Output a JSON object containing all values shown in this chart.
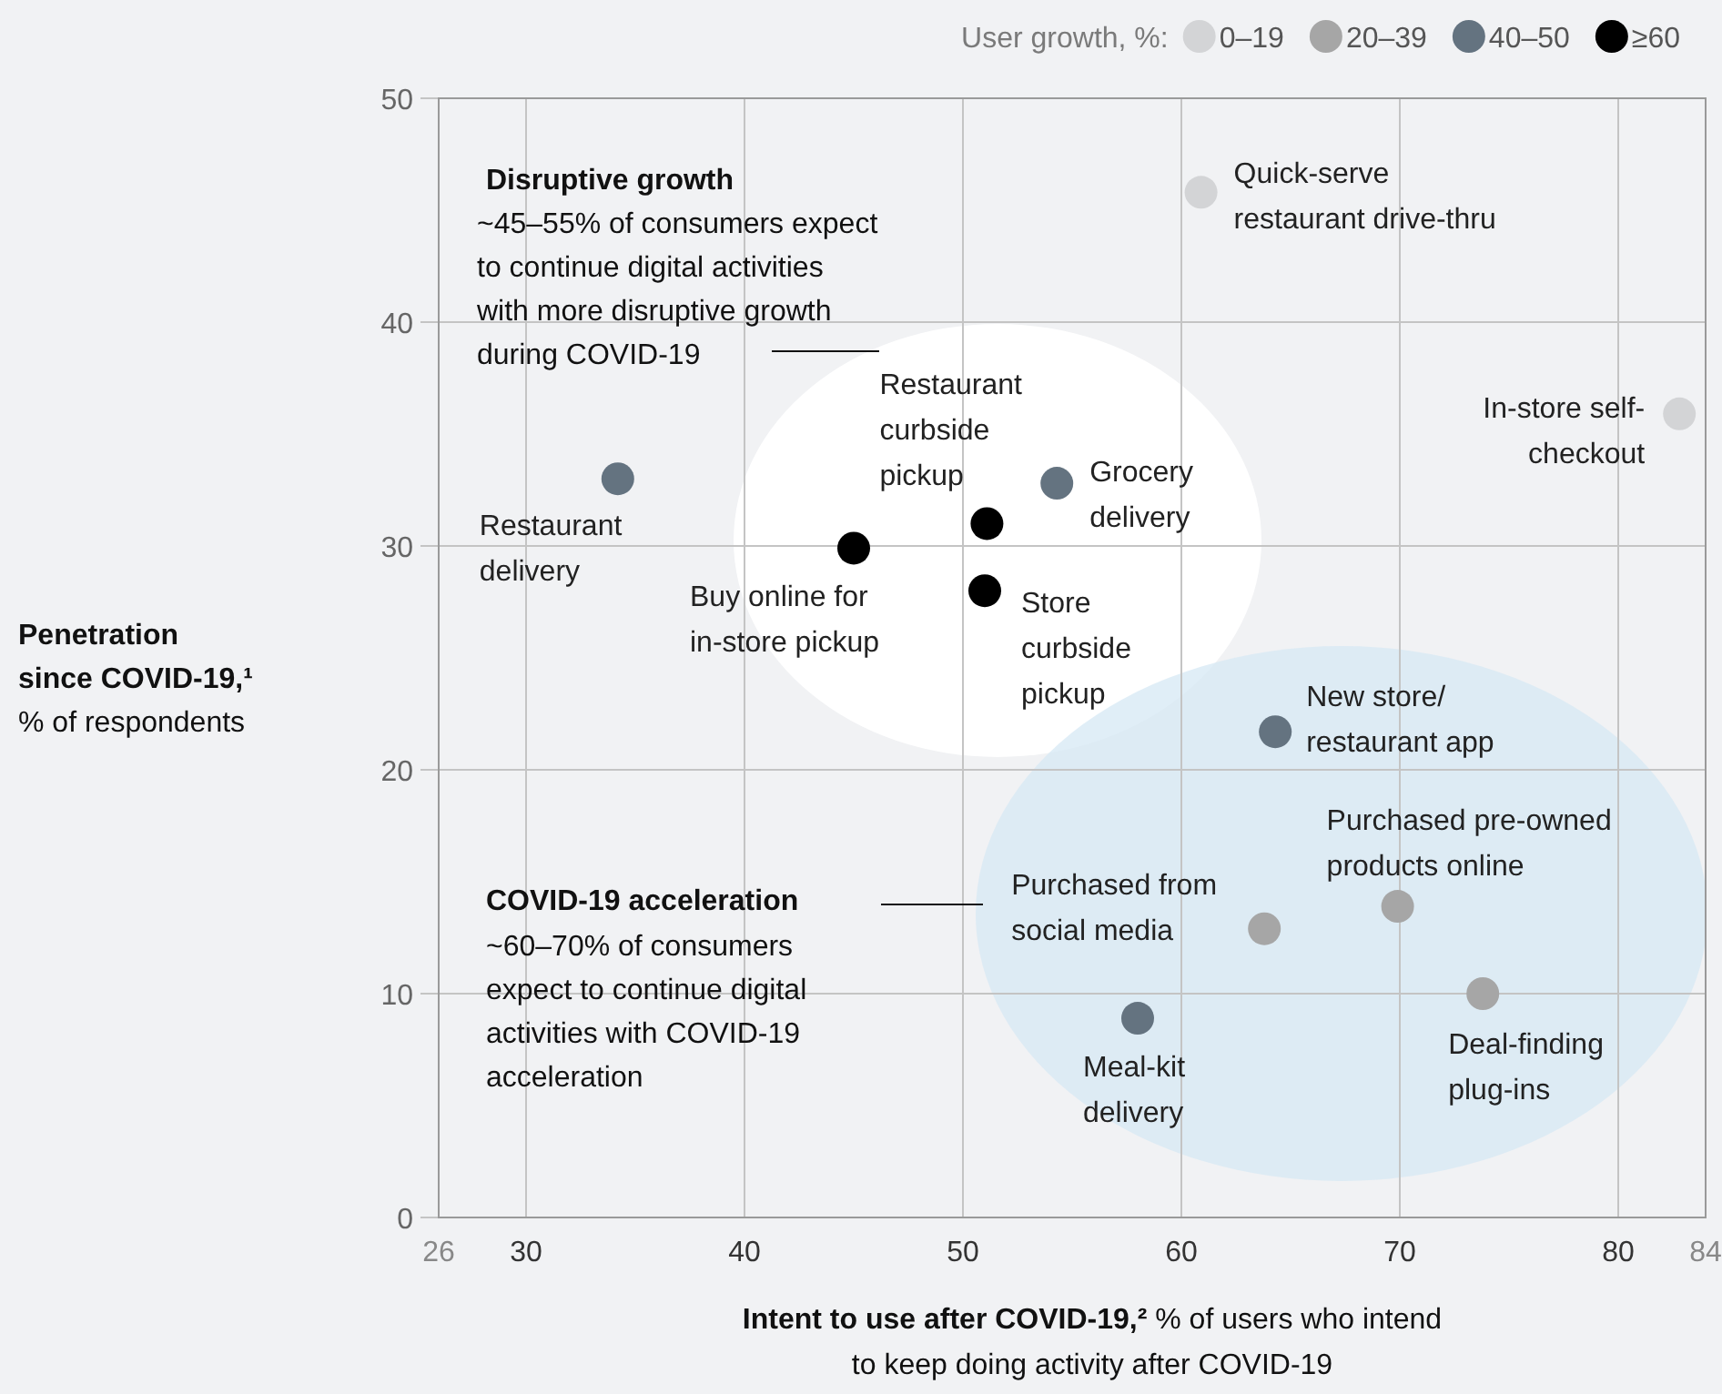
{
  "chart_data": {
    "type": "scatter",
    "legend_title": "User growth, %:",
    "legend": "top right",
    "grid": true,
    "marker": "circle",
    "xlabel": "Intent to use after COVID-19,² % of users who intend to keep doing activity after COVID-19",
    "ylabel": "Penetration since COVID-19,¹ % of respondents",
    "xlim": [
      26,
      84
    ],
    "xticks": [
      26,
      30,
      40,
      50,
      60,
      70,
      80,
      84
    ],
    "ylim": [
      0,
      50
    ],
    "yticks": [
      0,
      10,
      20,
      30,
      40,
      50
    ],
    "series": [
      {
        "name": "0–19",
        "color": "#d3d4d6",
        "x": [
          60.9,
          82.8
        ],
        "values": [
          45.8,
          35.9
        ]
      },
      {
        "name": "20–39",
        "color": "#a6a6a6",
        "x": [
          63.8,
          69.9,
          73.8
        ],
        "values": [
          12.9,
          13.9,
          10.0
        ]
      },
      {
        "name": "40–50",
        "color": "#647380",
        "x": [
          34.2,
          54.3,
          64.3,
          58.0
        ],
        "values": [
          33.0,
          32.8,
          21.7,
          8.9
        ]
      },
      {
        "name": "≥60",
        "color": "#000000",
        "x": [
          45.0,
          51.1,
          51.0
        ],
        "values": [
          29.9,
          31.0,
          28.0
        ]
      }
    ],
    "annotations": [
      "Disruptive growth",
      "~45–55% of consumers expect to continue digital activities with more disruptive growth during COVID-19",
      "COVID-19 acceleration",
      "~60–70% of consumers expect to continue digital activities with COVID-19 acceleration",
      {
        "text": "Quick-serve restaurant drive-thru",
        "x": 60.9,
        "y": 45.8
      },
      {
        "text": "In-store self-checkout",
        "x": 82.8,
        "y": 35.9
      },
      {
        "text": "Restaurant delivery",
        "x": 34.2,
        "y": 33.0
      },
      {
        "text": "Grocery delivery",
        "x": 54.3,
        "y": 32.8
      },
      {
        "text": "Restaurant curbside pickup",
        "x": 51.1,
        "y": 31.0
      },
      {
        "text": "Buy online for in-store pickup",
        "x": 45.0,
        "y": 29.9
      },
      {
        "text": "Store curbside pickup",
        "x": 51.0,
        "y": 28.0
      },
      {
        "text": "New store/ restaurant app",
        "x": 64.3,
        "y": 21.7
      },
      {
        "text": "Purchased pre-owned products online",
        "x": 69.9,
        "y": 13.9
      },
      {
        "text": "Purchased from social media",
        "x": 63.8,
        "y": 12.9
      },
      {
        "text": "Deal-finding plug-ins",
        "x": 73.8,
        "y": 10.0
      },
      {
        "text": "Meal-kit delivery",
        "x": 58.0,
        "y": 8.9
      }
    ]
  }
}
